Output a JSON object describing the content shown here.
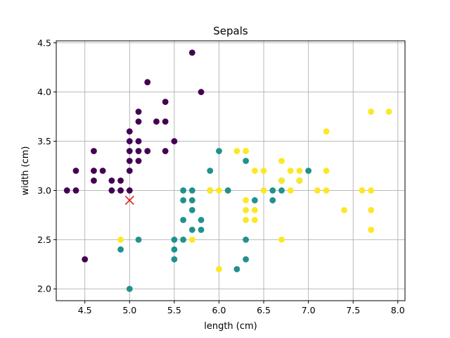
{
  "chart_data": {
    "type": "scatter",
    "title": "Sepals",
    "xlabel": "length (cm)",
    "ylabel": "width (cm)",
    "xlim": [
      4.18,
      8.08
    ],
    "ylim": [
      1.88,
      4.52
    ],
    "xticks": [
      "4.5",
      "5.0",
      "5.5",
      "6.0",
      "6.5",
      "7.0",
      "7.5",
      "8.0"
    ],
    "yticks": [
      "2.0",
      "2.5",
      "3.0",
      "3.5",
      "4.0",
      "4.5"
    ],
    "grid": true,
    "colors": {
      "class_0": "#440154",
      "class_1": "#21918c",
      "class_2": "#fde725",
      "marker": "#e41a1c"
    },
    "series": [
      {
        "class": 0,
        "points": [
          [
            5.7,
            4.4
          ],
          [
            5.8,
            4.0
          ],
          [
            5.2,
            4.1
          ],
          [
            5.4,
            3.9
          ],
          [
            5.1,
            3.8
          ],
          [
            5.1,
            3.7
          ],
          [
            5.3,
            3.7
          ],
          [
            5.4,
            3.7
          ],
          [
            5.0,
            3.6
          ],
          [
            5.0,
            3.5
          ],
          [
            5.1,
            3.5
          ],
          [
            5.5,
            3.5
          ],
          [
            4.6,
            3.4
          ],
          [
            5.0,
            3.4
          ],
          [
            5.1,
            3.4
          ],
          [
            5.2,
            3.4
          ],
          [
            5.4,
            3.4
          ],
          [
            5.0,
            3.3
          ],
          [
            5.1,
            3.3
          ],
          [
            4.4,
            3.2
          ],
          [
            4.6,
            3.2
          ],
          [
            4.7,
            3.2
          ],
          [
            5.0,
            3.2
          ],
          [
            4.6,
            3.1
          ],
          [
            4.8,
            3.1
          ],
          [
            4.9,
            3.1
          ],
          [
            4.3,
            3.0
          ],
          [
            4.4,
            3.0
          ],
          [
            4.8,
            3.0
          ],
          [
            4.9,
            3.0
          ],
          [
            5.0,
            3.0
          ],
          [
            4.5,
            2.3
          ]
        ]
      },
      {
        "class": 1,
        "points": [
          [
            6.0,
            3.4
          ],
          [
            6.3,
            3.3
          ],
          [
            5.9,
            3.2
          ],
          [
            5.6,
            3.0
          ],
          [
            5.7,
            3.0
          ],
          [
            5.9,
            3.0
          ],
          [
            6.1,
            3.0
          ],
          [
            6.6,
            3.0
          ],
          [
            6.7,
            3.0
          ],
          [
            6.7,
            3.1
          ],
          [
            6.9,
            3.1
          ],
          [
            7.0,
            3.2
          ],
          [
            5.6,
            2.9
          ],
          [
            5.7,
            2.9
          ],
          [
            6.4,
            2.9
          ],
          [
            6.6,
            2.9
          ],
          [
            5.7,
            2.8
          ],
          [
            5.6,
            2.7
          ],
          [
            5.8,
            2.7
          ],
          [
            5.7,
            2.6
          ],
          [
            5.8,
            2.6
          ],
          [
            5.1,
            2.5
          ],
          [
            5.5,
            2.5
          ],
          [
            5.6,
            2.5
          ],
          [
            6.3,
            2.5
          ],
          [
            4.9,
            2.4
          ],
          [
            5.5,
            2.4
          ],
          [
            5.5,
            2.3
          ],
          [
            6.3,
            2.3
          ],
          [
            6.2,
            2.2
          ],
          [
            5.0,
            2.0
          ]
        ]
      },
      {
        "class": 2,
        "points": [
          [
            7.7,
            3.8
          ],
          [
            7.9,
            3.8
          ],
          [
            7.2,
            3.6
          ],
          [
            6.2,
            3.4
          ],
          [
            6.3,
            3.4
          ],
          [
            6.7,
            3.3
          ],
          [
            6.4,
            3.2
          ],
          [
            6.5,
            3.2
          ],
          [
            6.8,
            3.2
          ],
          [
            6.9,
            3.2
          ],
          [
            7.2,
            3.2
          ],
          [
            6.7,
            3.1
          ],
          [
            6.9,
            3.1
          ],
          [
            5.9,
            3.0
          ],
          [
            6.0,
            3.0
          ],
          [
            6.5,
            3.0
          ],
          [
            6.8,
            3.0
          ],
          [
            7.1,
            3.0
          ],
          [
            7.2,
            3.0
          ],
          [
            7.6,
            3.0
          ],
          [
            7.7,
            3.0
          ],
          [
            6.3,
            2.9
          ],
          [
            6.3,
            2.8
          ],
          [
            6.4,
            2.8
          ],
          [
            7.4,
            2.8
          ],
          [
            7.7,
            2.8
          ],
          [
            6.3,
            2.7
          ],
          [
            6.4,
            2.7
          ],
          [
            7.7,
            2.6
          ],
          [
            4.9,
            2.5
          ],
          [
            5.7,
            2.5
          ],
          [
            6.7,
            2.5
          ],
          [
            6.0,
            2.2
          ]
        ]
      }
    ],
    "highlight": {
      "x": 5.0,
      "y": 2.9,
      "marker": "x"
    }
  }
}
